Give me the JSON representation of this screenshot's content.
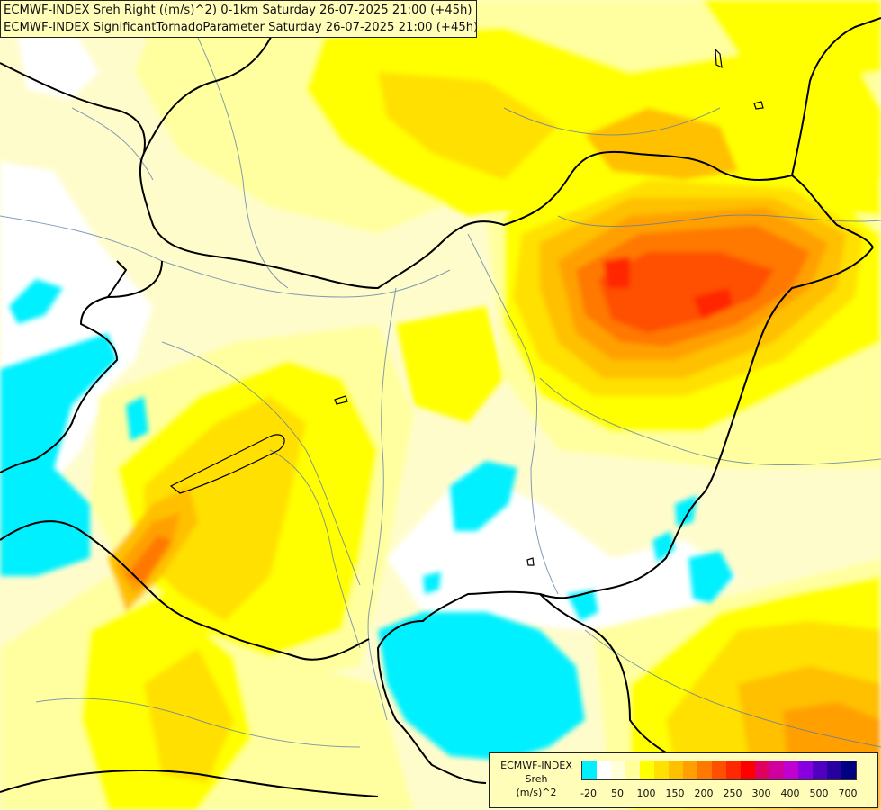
{
  "title": {
    "line1": "ECMWF-INDEX Sreh Right ((m/s)^2) 0-1km Saturday 26-07-2025 21:00 (+45h)",
    "line2": "ECMWF-INDEX SignificantTornadoParameter Saturday 26-07-2025 21:00 (+45h)"
  },
  "legend": {
    "line1": "ECMWF-INDEX",
    "line2": "Sreh",
    "line3": "(m/s)^2",
    "colors": [
      "#00f0ff",
      "#ffffff",
      "#ffffd8",
      "#ffff9c",
      "#ffff00",
      "#ffe000",
      "#ffc000",
      "#ffa000",
      "#ff7800",
      "#ff5000",
      "#ff2800",
      "#ff0000",
      "#e00060",
      "#d000a0",
      "#c000d0",
      "#8800e0",
      "#5000c0",
      "#2800a0",
      "#000080"
    ],
    "ticks": [
      "-20",
      "50",
      "100",
      "150",
      "200",
      "250",
      "300",
      "400",
      "500",
      "700"
    ]
  },
  "field_colors": {
    "cyan": "#00f0ff",
    "white": "#ffffff",
    "pale": "#fffccc",
    "light": "#ffffa0",
    "yellow": "#ffff00",
    "gold": "#ffe000",
    "orange_light": "#ffc000",
    "orange": "#ffa000",
    "orange_dark": "#ff7800",
    "red_orange": "#ff5000",
    "red": "#ff2800"
  }
}
